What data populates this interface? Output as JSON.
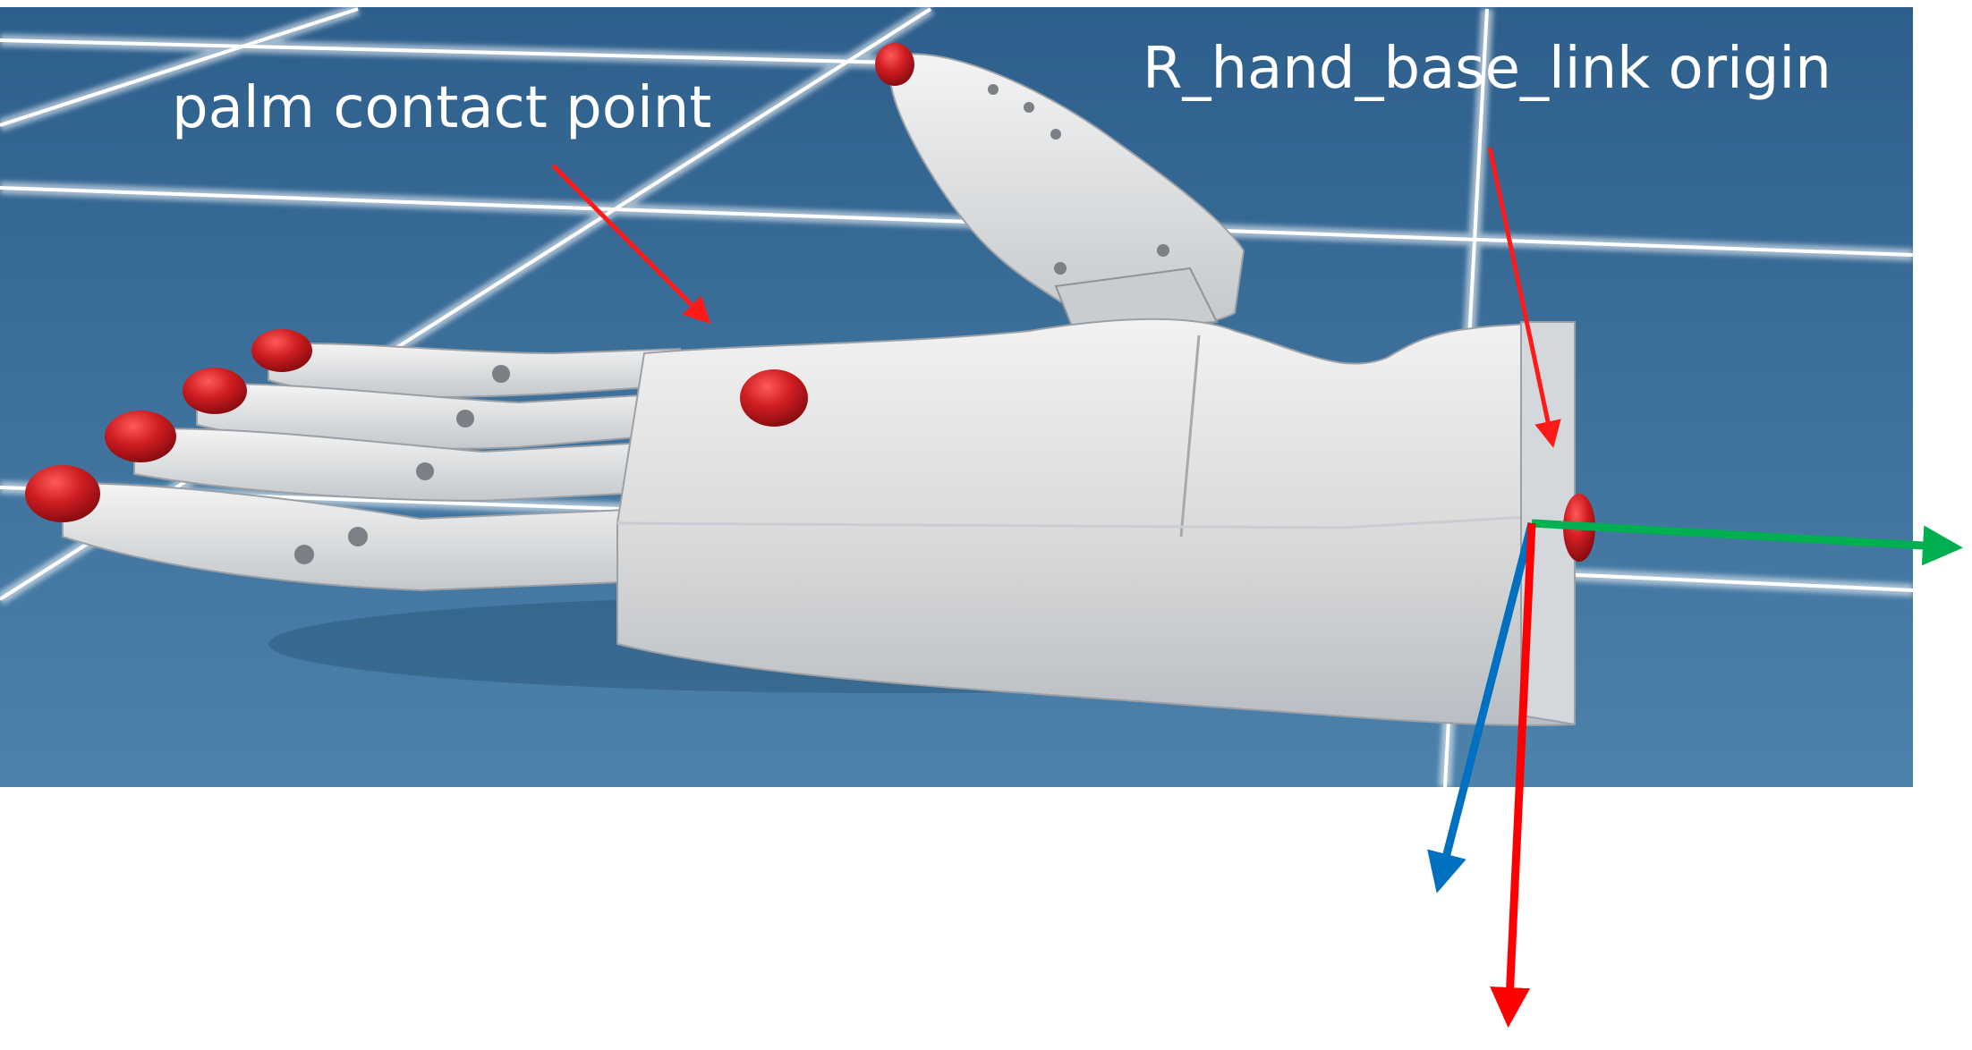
{
  "figure": {
    "background_color": "#ffffff",
    "scene_color": "#3c6e98",
    "grid_color": "#ffffff",
    "hand_color": "#e6e6e6",
    "marker_color": "#d01e22"
  },
  "annotations": {
    "palm_contact_label": "palm contact point",
    "base_link_label": "R_hand_base_link origin",
    "pointer_color": "#ff1a1a"
  },
  "axes": {
    "x_axis_color": "#ff0000",
    "y_axis_color": "#00b050",
    "z_axis_color": "#0070c0"
  }
}
